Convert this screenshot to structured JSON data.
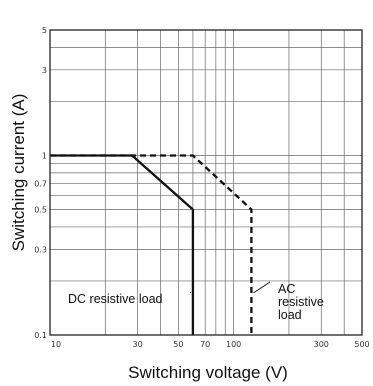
{
  "chart_data": {
    "type": "line",
    "xlabel": "Switching voltage (V)",
    "ylabel": "Switching current (A)",
    "x_scale": "log",
    "y_scale": "log",
    "xlim": [
      10,
      500
    ],
    "ylim": [
      0.1,
      5
    ],
    "x_ticks": [
      {
        "value": 10,
        "label": "10"
      },
      {
        "value": 30,
        "label": "30"
      },
      {
        "value": 50,
        "label": "50"
      },
      {
        "value": 70,
        "label": "70"
      },
      {
        "value": 100,
        "label": "100"
      },
      {
        "value": 300,
        "label": "300"
      },
      {
        "value": 500,
        "label": "500"
      }
    ],
    "y_ticks": [
      {
        "value": 0.1,
        "label": "0.1"
      },
      {
        "value": 0.3,
        "label": "0.3"
      },
      {
        "value": 0.5,
        "label": "0.5"
      },
      {
        "value": 0.7,
        "label": "0.7"
      },
      {
        "value": 1,
        "label": "1"
      },
      {
        "value": 3,
        "label": "3"
      },
      {
        "value": 5,
        "label": "5"
      }
    ],
    "grid": true,
    "series": [
      {
        "name": "DC resistive load",
        "style": "solid",
        "color": "#111111",
        "x": [
          10,
          28,
          60,
          60
        ],
        "y": [
          1,
          1,
          0.5,
          0.1
        ]
      },
      {
        "name": "AC resistive load",
        "style": "dashed",
        "color": "#111111",
        "x": [
          10,
          60,
          125,
          125
        ],
        "y": [
          1,
          1,
          0.5,
          0.1
        ]
      }
    ],
    "annotations": [
      {
        "text": "DC resistive load",
        "lines": [
          "DC resistive load"
        ],
        "series": 0,
        "points_to": [
          60,
          0.2
        ]
      },
      {
        "text": "AC resistive load",
        "lines": [
          "AC",
          "resistive",
          "load"
        ],
        "series": 1,
        "points_to": [
          125,
          0.2
        ]
      }
    ]
  }
}
